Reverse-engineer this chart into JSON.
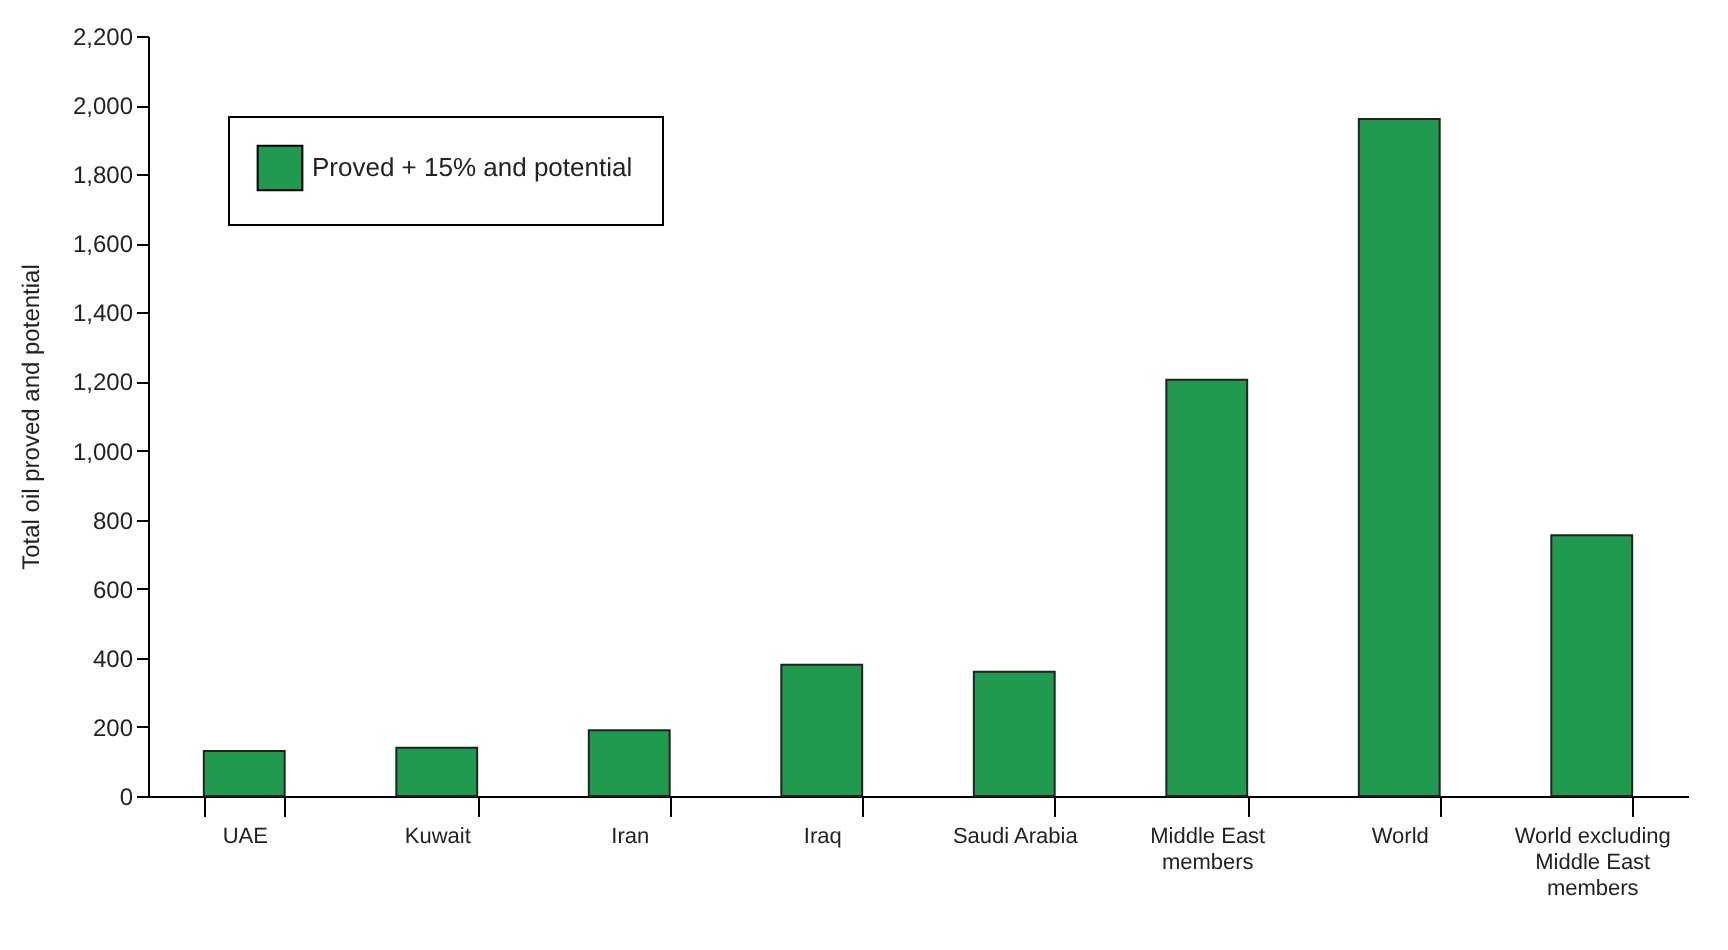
{
  "chart_data": {
    "type": "bar",
    "ylabel": "Total oil proved and potential",
    "categories": [
      "UAE",
      "Kuwait",
      "Iran",
      "Iraq",
      "Saudi Arabia",
      "Middle East members",
      "World",
      "World excluding Middle East members"
    ],
    "series": [
      {
        "name": "Proved + 15% and potential",
        "color": "#1f9a4e",
        "values": [
          130,
          140,
          190,
          380,
          360,
          1205,
          1960,
          755
        ]
      }
    ],
    "ylim": [
      0,
      2200
    ],
    "yticks": [
      {
        "value": 0,
        "label": "0"
      },
      {
        "value": 200,
        "label": "200"
      },
      {
        "value": 400,
        "label": "400"
      },
      {
        "value": 600,
        "label": "600"
      },
      {
        "value": 800,
        "label": "800"
      },
      {
        "value": 1000,
        "label": "1,000"
      },
      {
        "value": 1200,
        "label": "1,200"
      },
      {
        "value": 1400,
        "label": "1,400"
      },
      {
        "value": 1600,
        "label": "1,600"
      },
      {
        "value": 1800,
        "label": "1,800"
      },
      {
        "value": 2000,
        "label": "2,000"
      },
      {
        "value": 2200,
        "label": "2,200"
      }
    ],
    "grid": false,
    "legend": "top left"
  }
}
